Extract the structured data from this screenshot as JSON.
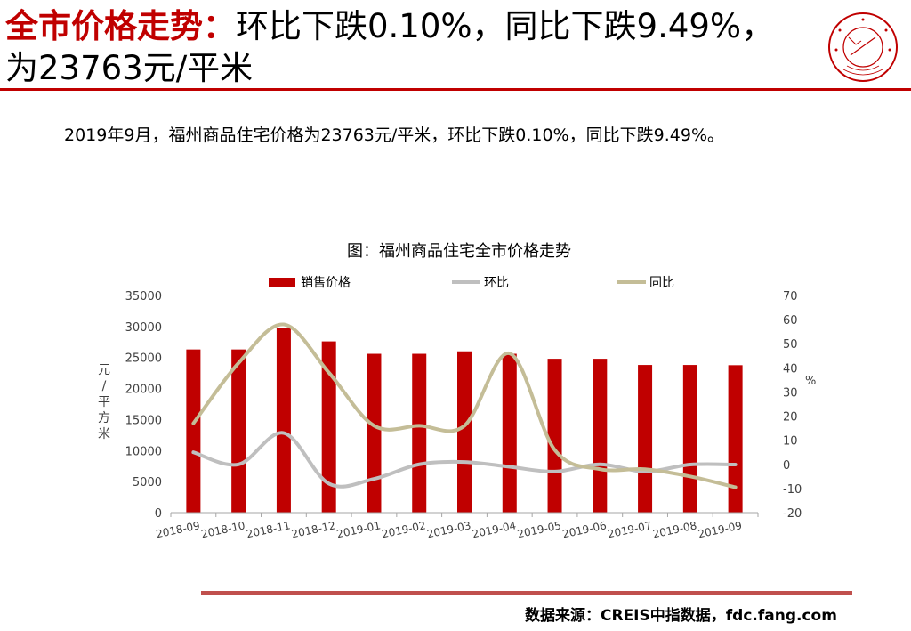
{
  "header": {
    "title_highlight": "全市价格走势：",
    "title_rest": "环比下跌0.10%，同比下跌9.49%，为23763元/平米"
  },
  "logo": {
    "name": "china-index-academy-logo",
    "text": "中國指數研究院 CHINA INDEX ACADEMY"
  },
  "summary": "2019年9月，福州商品住宅价格为23763元/平米，环比下跌0.10%，同比下跌9.49%。",
  "chart_data": {
    "type": "bar",
    "title": "图：福州商品住宅全市价格走势",
    "categories": [
      "2018-09",
      "2018-10",
      "2018-11",
      "2018-12",
      "2019-01",
      "2019-02",
      "2019-03",
      "2019-04",
      "2019-05",
      "2019-06",
      "2019-07",
      "2019-08",
      "2019-09"
    ],
    "ylabel": "元/平方米",
    "y2label": "%",
    "ylim": [
      0,
      35000
    ],
    "y2lim": [
      -20,
      70
    ],
    "yticks": [
      0,
      5000,
      10000,
      15000,
      20000,
      25000,
      30000,
      35000
    ],
    "y2ticks": [
      -20,
      -10,
      0,
      10,
      20,
      30,
      40,
      50,
      60,
      70
    ],
    "legend_placement": "top",
    "grid": false,
    "series": [
      {
        "name": "销售价格",
        "type": "bar",
        "axis": "left",
        "color": "#c00000",
        "values": [
          26300,
          26300,
          29700,
          27600,
          25600,
          25600,
          26000,
          25600,
          24800,
          24800,
          23800,
          23800,
          23763
        ]
      },
      {
        "name": "环比",
        "type": "line",
        "axis": "right",
        "color": "#bfbfbf",
        "values": [
          5,
          0,
          13,
          -8,
          -6,
          0,
          1,
          -1,
          -3,
          0,
          -3,
          -0.1,
          -0.1
        ]
      },
      {
        "name": "同比",
        "type": "line",
        "axis": "right",
        "color": "#c4bd97",
        "values": [
          17,
          42,
          58,
          38,
          16,
          16,
          16,
          46,
          6,
          -2,
          -2,
          -5,
          -9.49
        ]
      }
    ]
  },
  "footer": {
    "source": "数据来源：CREIS中指数据，fdc.fang.com"
  }
}
